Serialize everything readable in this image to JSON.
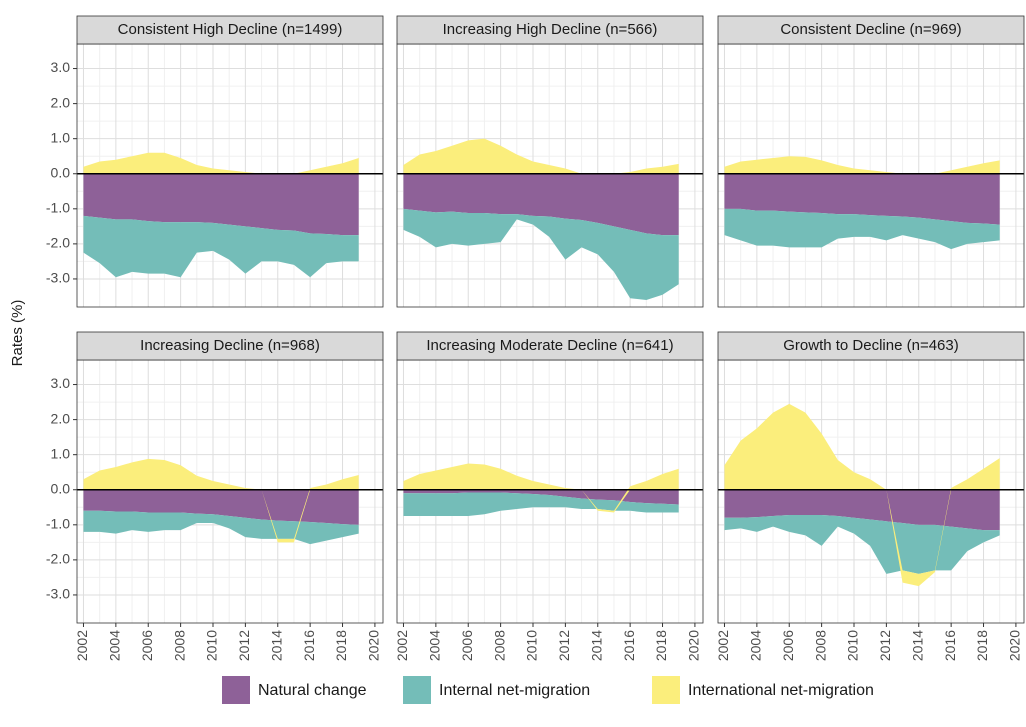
{
  "y_label": "Rates (%)",
  "axes": {
    "x": [
      2002,
      2003,
      2004,
      2005,
      2006,
      2007,
      2008,
      2009,
      2010,
      2011,
      2012,
      2013,
      2014,
      2015,
      2016,
      2017,
      2018,
      2019
    ],
    "xlim": [
      2001.6,
      2020.5
    ],
    "xticks": [
      2002,
      2004,
      2006,
      2008,
      2010,
      2012,
      2014,
      2016,
      2018,
      2020
    ],
    "ylim": [
      -3.8,
      3.7
    ],
    "yticks": [
      {
        "value": -3,
        "label": "-3.0"
      },
      {
        "value": -2,
        "label": "-2.0"
      },
      {
        "value": -1,
        "label": "-1.0"
      },
      {
        "value": 0,
        "label": "0.0"
      },
      {
        "value": 1,
        "label": "1.0"
      },
      {
        "value": 2,
        "label": "2.0"
      },
      {
        "value": 3,
        "label": "3.0"
      }
    ],
    "zero_line": 0,
    "grid": true
  },
  "chart_data": [
    {
      "type": "area",
      "title": "Consistent High Decline (n=1499)",
      "series": [
        {
          "name": "Natural change",
          "color": "#8e6198",
          "values": [
            -1.2,
            -1.25,
            -1.3,
            -1.3,
            -1.35,
            -1.38,
            -1.38,
            -1.38,
            -1.4,
            -1.45,
            -1.5,
            -1.55,
            -1.6,
            -1.62,
            -1.7,
            -1.72,
            -1.75,
            -1.75
          ]
        },
        {
          "name": "Internal net-migration",
          "color": "#74bdb8",
          "values": [
            -1.05,
            -1.3,
            -1.65,
            -1.5,
            -1.5,
            -1.47,
            -1.57,
            -0.87,
            -0.8,
            -1.0,
            -1.35,
            -0.95,
            -0.9,
            -0.98,
            -1.25,
            -0.83,
            -0.75,
            -0.75
          ]
        },
        {
          "name": "International net-migration",
          "color": "#fbee7c",
          "values": [
            0.2,
            0.35,
            0.4,
            0.5,
            0.6,
            0.6,
            0.45,
            0.25,
            0.15,
            0.1,
            0.05,
            0,
            0,
            0,
            0.1,
            0.2,
            0.3,
            0.45
          ]
        }
      ]
    },
    {
      "type": "area",
      "title": "Increasing High Decline (n=566)",
      "series": [
        {
          "name": "Natural change",
          "color": "#8e6198",
          "values": [
            -1.0,
            -1.05,
            -1.1,
            -1.08,
            -1.12,
            -1.12,
            -1.15,
            -1.15,
            -1.2,
            -1.22,
            -1.28,
            -1.32,
            -1.4,
            -1.5,
            -1.6,
            -1.7,
            -1.75,
            -1.75
          ]
        },
        {
          "name": "Internal net-migration",
          "color": "#74bdb8",
          "values": [
            -0.6,
            -0.75,
            -1.0,
            -0.92,
            -0.93,
            -0.88,
            -0.8,
            -0.15,
            -0.25,
            -0.58,
            -1.17,
            -0.78,
            -0.9,
            -1.3,
            -1.95,
            -1.9,
            -1.7,
            -1.4
          ]
        },
        {
          "name": "International net-migration",
          "color": "#fbee7c",
          "values": [
            0.25,
            0.55,
            0.65,
            0.8,
            0.95,
            1.0,
            0.8,
            0.55,
            0.35,
            0.25,
            0.15,
            0,
            0,
            0,
            0.05,
            0.15,
            0.2,
            0.28
          ]
        }
      ]
    },
    {
      "type": "area",
      "title": "Consistent Decline (n=969)",
      "series": [
        {
          "name": "Natural change",
          "color": "#8e6198",
          "values": [
            -1.0,
            -1.0,
            -1.05,
            -1.05,
            -1.08,
            -1.1,
            -1.12,
            -1.15,
            -1.15,
            -1.18,
            -1.2,
            -1.22,
            -1.25,
            -1.3,
            -1.35,
            -1.4,
            -1.42,
            -1.45
          ]
        },
        {
          "name": "Internal net-migration",
          "color": "#74bdb8",
          "values": [
            -0.75,
            -0.9,
            -1.0,
            -1.0,
            -1.02,
            -1.0,
            -0.98,
            -0.7,
            -0.65,
            -0.62,
            -0.7,
            -0.53,
            -0.6,
            -0.65,
            -0.8,
            -0.6,
            -0.53,
            -0.45
          ]
        },
        {
          "name": "International net-migration",
          "color": "#fbee7c",
          "values": [
            0.2,
            0.35,
            0.4,
            0.45,
            0.5,
            0.48,
            0.38,
            0.25,
            0.15,
            0.1,
            0.05,
            0,
            0,
            0,
            0.1,
            0.2,
            0.3,
            0.38
          ]
        }
      ]
    },
    {
      "type": "area",
      "title": "Increasing Decline (n=968)",
      "series": [
        {
          "name": "Natural change",
          "color": "#8e6198",
          "values": [
            -0.6,
            -0.6,
            -0.62,
            -0.62,
            -0.65,
            -0.65,
            -0.65,
            -0.68,
            -0.7,
            -0.75,
            -0.8,
            -0.85,
            -0.88,
            -0.9,
            -0.92,
            -0.95,
            -0.98,
            -1.0
          ]
        },
        {
          "name": "Internal net-migration",
          "color": "#74bdb8",
          "values": [
            -0.6,
            -0.6,
            -0.63,
            -0.53,
            -0.55,
            -0.5,
            -0.5,
            -0.27,
            -0.25,
            -0.35,
            -0.55,
            -0.55,
            -0.52,
            -0.5,
            -0.63,
            -0.5,
            -0.37,
            -0.25
          ]
        },
        {
          "name": "International net-migration",
          "color": "#fbee7c",
          "values": [
            0.3,
            0.55,
            0.65,
            0.78,
            0.88,
            0.85,
            0.7,
            0.4,
            0.25,
            0.15,
            0.05,
            0,
            -0.1,
            -0.1,
            0.05,
            0.15,
            0.3,
            0.42
          ]
        }
      ]
    },
    {
      "type": "area",
      "title": "Increasing Moderate Decline (n=641)",
      "series": [
        {
          "name": "Natural change",
          "color": "#8e6198",
          "values": [
            -0.1,
            -0.1,
            -0.1,
            -0.1,
            -0.08,
            -0.08,
            -0.08,
            -0.1,
            -0.12,
            -0.15,
            -0.2,
            -0.25,
            -0.28,
            -0.3,
            -0.35,
            -0.38,
            -0.4,
            -0.42
          ]
        },
        {
          "name": "Internal net-migration",
          "color": "#74bdb8",
          "values": [
            -0.65,
            -0.65,
            -0.65,
            -0.65,
            -0.67,
            -0.62,
            -0.52,
            -0.45,
            -0.38,
            -0.35,
            -0.3,
            -0.3,
            -0.27,
            -0.3,
            -0.25,
            -0.27,
            -0.25,
            -0.23
          ]
        },
        {
          "name": "International net-migration",
          "color": "#fbee7c",
          "values": [
            0.25,
            0.45,
            0.55,
            0.65,
            0.75,
            0.72,
            0.6,
            0.4,
            0.25,
            0.15,
            0.05,
            0,
            -0.05,
            -0.05,
            0.1,
            0.25,
            0.45,
            0.6
          ]
        }
      ]
    },
    {
      "type": "area",
      "title": "Growth to Decline (n=463)",
      "series": [
        {
          "name": "Natural change",
          "color": "#8e6198",
          "values": [
            -0.8,
            -0.8,
            -0.78,
            -0.75,
            -0.72,
            -0.72,
            -0.72,
            -0.75,
            -0.8,
            -0.85,
            -0.9,
            -0.95,
            -1.0,
            -1.0,
            -1.05,
            -1.1,
            -1.15,
            -1.15
          ]
        },
        {
          "name": "Internal net-migration",
          "color": "#74bdb8",
          "values": [
            -0.35,
            -0.3,
            -0.42,
            -0.3,
            -0.48,
            -0.58,
            -0.88,
            -0.3,
            -0.45,
            -0.75,
            -1.5,
            -1.35,
            -1.4,
            -1.3,
            -1.25,
            -0.65,
            -0.35,
            -0.15
          ]
        },
        {
          "name": "International net-migration",
          "color": "#fbee7c",
          "values": [
            0.7,
            1.4,
            1.75,
            2.2,
            2.45,
            2.2,
            1.6,
            0.85,
            0.5,
            0.3,
            0,
            -0.35,
            -0.35,
            -0.05,
            0.05,
            0.3,
            0.6,
            0.9
          ]
        }
      ]
    }
  ]
}
